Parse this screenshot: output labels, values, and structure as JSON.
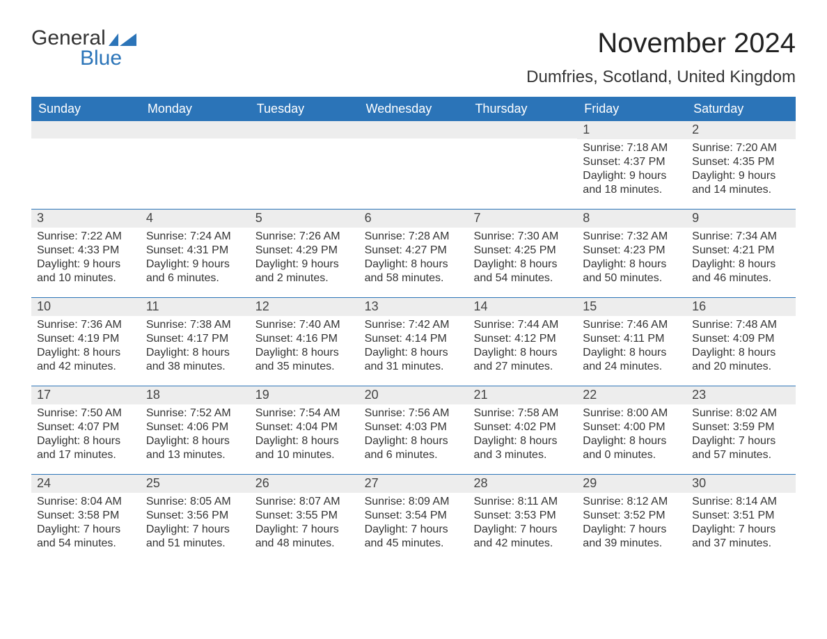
{
  "logo": {
    "word1": "General",
    "word2": "Blue",
    "icon_color": "#2b74b8",
    "word1_color": "#333333",
    "word2_color": "#2b74b8"
  },
  "title": "November 2024",
  "subtitle": "Dumfries, Scotland, United Kingdom",
  "colors": {
    "header_bg": "#2b74b8",
    "header_text": "#ffffff",
    "daynum_bg": "#ededed",
    "row_divider": "#2b74b8",
    "body_text": "#333333",
    "page_bg": "#ffffff"
  },
  "typography": {
    "title_fontsize": 40,
    "subtitle_fontsize": 24,
    "dow_fontsize": 18,
    "daynum_fontsize": 18,
    "body_fontsize": 16
  },
  "days_of_week": [
    "Sunday",
    "Monday",
    "Tuesday",
    "Wednesday",
    "Thursday",
    "Friday",
    "Saturday"
  ],
  "weeks": [
    [
      {
        "blank": true
      },
      {
        "blank": true
      },
      {
        "blank": true
      },
      {
        "blank": true
      },
      {
        "blank": true
      },
      {
        "day": "1",
        "sunrise": "Sunrise: 7:18 AM",
        "sunset": "Sunset: 4:37 PM",
        "daylight1": "Daylight: 9 hours",
        "daylight2": "and 18 minutes."
      },
      {
        "day": "2",
        "sunrise": "Sunrise: 7:20 AM",
        "sunset": "Sunset: 4:35 PM",
        "daylight1": "Daylight: 9 hours",
        "daylight2": "and 14 minutes."
      }
    ],
    [
      {
        "day": "3",
        "sunrise": "Sunrise: 7:22 AM",
        "sunset": "Sunset: 4:33 PM",
        "daylight1": "Daylight: 9 hours",
        "daylight2": "and 10 minutes."
      },
      {
        "day": "4",
        "sunrise": "Sunrise: 7:24 AM",
        "sunset": "Sunset: 4:31 PM",
        "daylight1": "Daylight: 9 hours",
        "daylight2": "and 6 minutes."
      },
      {
        "day": "5",
        "sunrise": "Sunrise: 7:26 AM",
        "sunset": "Sunset: 4:29 PM",
        "daylight1": "Daylight: 9 hours",
        "daylight2": "and 2 minutes."
      },
      {
        "day": "6",
        "sunrise": "Sunrise: 7:28 AM",
        "sunset": "Sunset: 4:27 PM",
        "daylight1": "Daylight: 8 hours",
        "daylight2": "and 58 minutes."
      },
      {
        "day": "7",
        "sunrise": "Sunrise: 7:30 AM",
        "sunset": "Sunset: 4:25 PM",
        "daylight1": "Daylight: 8 hours",
        "daylight2": "and 54 minutes."
      },
      {
        "day": "8",
        "sunrise": "Sunrise: 7:32 AM",
        "sunset": "Sunset: 4:23 PM",
        "daylight1": "Daylight: 8 hours",
        "daylight2": "and 50 minutes."
      },
      {
        "day": "9",
        "sunrise": "Sunrise: 7:34 AM",
        "sunset": "Sunset: 4:21 PM",
        "daylight1": "Daylight: 8 hours",
        "daylight2": "and 46 minutes."
      }
    ],
    [
      {
        "day": "10",
        "sunrise": "Sunrise: 7:36 AM",
        "sunset": "Sunset: 4:19 PM",
        "daylight1": "Daylight: 8 hours",
        "daylight2": "and 42 minutes."
      },
      {
        "day": "11",
        "sunrise": "Sunrise: 7:38 AM",
        "sunset": "Sunset: 4:17 PM",
        "daylight1": "Daylight: 8 hours",
        "daylight2": "and 38 minutes."
      },
      {
        "day": "12",
        "sunrise": "Sunrise: 7:40 AM",
        "sunset": "Sunset: 4:16 PM",
        "daylight1": "Daylight: 8 hours",
        "daylight2": "and 35 minutes."
      },
      {
        "day": "13",
        "sunrise": "Sunrise: 7:42 AM",
        "sunset": "Sunset: 4:14 PM",
        "daylight1": "Daylight: 8 hours",
        "daylight2": "and 31 minutes."
      },
      {
        "day": "14",
        "sunrise": "Sunrise: 7:44 AM",
        "sunset": "Sunset: 4:12 PM",
        "daylight1": "Daylight: 8 hours",
        "daylight2": "and 27 minutes."
      },
      {
        "day": "15",
        "sunrise": "Sunrise: 7:46 AM",
        "sunset": "Sunset: 4:11 PM",
        "daylight1": "Daylight: 8 hours",
        "daylight2": "and 24 minutes."
      },
      {
        "day": "16",
        "sunrise": "Sunrise: 7:48 AM",
        "sunset": "Sunset: 4:09 PM",
        "daylight1": "Daylight: 8 hours",
        "daylight2": "and 20 minutes."
      }
    ],
    [
      {
        "day": "17",
        "sunrise": "Sunrise: 7:50 AM",
        "sunset": "Sunset: 4:07 PM",
        "daylight1": "Daylight: 8 hours",
        "daylight2": "and 17 minutes."
      },
      {
        "day": "18",
        "sunrise": "Sunrise: 7:52 AM",
        "sunset": "Sunset: 4:06 PM",
        "daylight1": "Daylight: 8 hours",
        "daylight2": "and 13 minutes."
      },
      {
        "day": "19",
        "sunrise": "Sunrise: 7:54 AM",
        "sunset": "Sunset: 4:04 PM",
        "daylight1": "Daylight: 8 hours",
        "daylight2": "and 10 minutes."
      },
      {
        "day": "20",
        "sunrise": "Sunrise: 7:56 AM",
        "sunset": "Sunset: 4:03 PM",
        "daylight1": "Daylight: 8 hours",
        "daylight2": "and 6 minutes."
      },
      {
        "day": "21",
        "sunrise": "Sunrise: 7:58 AM",
        "sunset": "Sunset: 4:02 PM",
        "daylight1": "Daylight: 8 hours",
        "daylight2": "and 3 minutes."
      },
      {
        "day": "22",
        "sunrise": "Sunrise: 8:00 AM",
        "sunset": "Sunset: 4:00 PM",
        "daylight1": "Daylight: 8 hours",
        "daylight2": "and 0 minutes."
      },
      {
        "day": "23",
        "sunrise": "Sunrise: 8:02 AM",
        "sunset": "Sunset: 3:59 PM",
        "daylight1": "Daylight: 7 hours",
        "daylight2": "and 57 minutes."
      }
    ],
    [
      {
        "day": "24",
        "sunrise": "Sunrise: 8:04 AM",
        "sunset": "Sunset: 3:58 PM",
        "daylight1": "Daylight: 7 hours",
        "daylight2": "and 54 minutes."
      },
      {
        "day": "25",
        "sunrise": "Sunrise: 8:05 AM",
        "sunset": "Sunset: 3:56 PM",
        "daylight1": "Daylight: 7 hours",
        "daylight2": "and 51 minutes."
      },
      {
        "day": "26",
        "sunrise": "Sunrise: 8:07 AM",
        "sunset": "Sunset: 3:55 PM",
        "daylight1": "Daylight: 7 hours",
        "daylight2": "and 48 minutes."
      },
      {
        "day": "27",
        "sunrise": "Sunrise: 8:09 AM",
        "sunset": "Sunset: 3:54 PM",
        "daylight1": "Daylight: 7 hours",
        "daylight2": "and 45 minutes."
      },
      {
        "day": "28",
        "sunrise": "Sunrise: 8:11 AM",
        "sunset": "Sunset: 3:53 PM",
        "daylight1": "Daylight: 7 hours",
        "daylight2": "and 42 minutes."
      },
      {
        "day": "29",
        "sunrise": "Sunrise: 8:12 AM",
        "sunset": "Sunset: 3:52 PM",
        "daylight1": "Daylight: 7 hours",
        "daylight2": "and 39 minutes."
      },
      {
        "day": "30",
        "sunrise": "Sunrise: 8:14 AM",
        "sunset": "Sunset: 3:51 PM",
        "daylight1": "Daylight: 7 hours",
        "daylight2": "and 37 minutes."
      }
    ]
  ]
}
